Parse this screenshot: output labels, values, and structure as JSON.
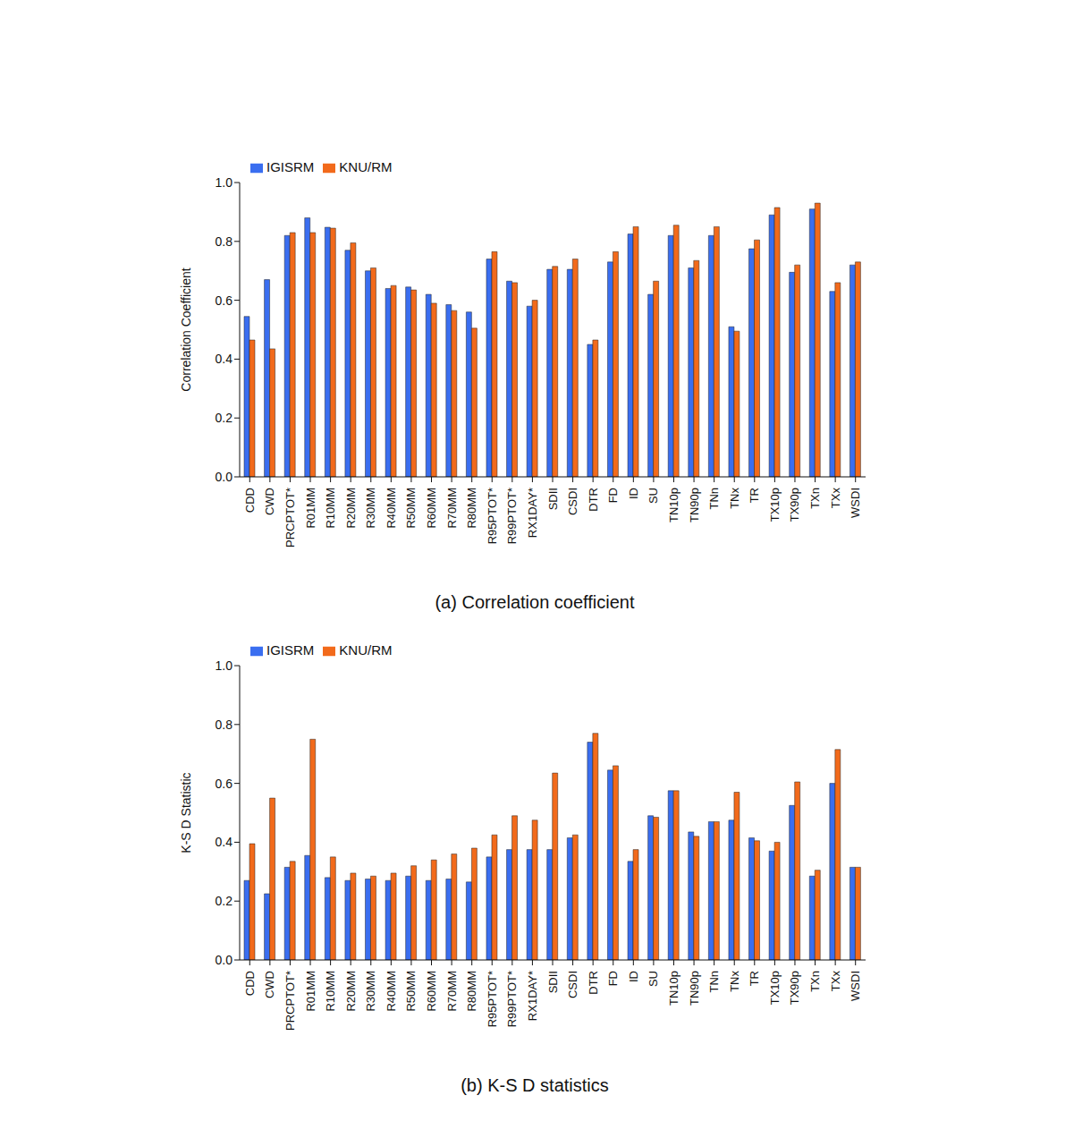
{
  "chart_data": [
    {
      "type": "bar",
      "title": "(a) Correlation coefficient",
      "y_label": "Correlation Coefficient",
      "categories": [
        "CDD",
        "CWD",
        "PRCPTOT*",
        "R01MM",
        "R10MM",
        "R20MM",
        "R30MM",
        "R40MM",
        "R50MM",
        "R60MM",
        "R70MM",
        "R80MM",
        "R95PTOT*",
        "R99PTOT*",
        "RX1DAY*",
        "SDII",
        "CSDI",
        "DTR",
        "FD",
        "ID",
        "SU",
        "TN10p",
        "TN90p",
        "TNn",
        "TNx",
        "TR",
        "TX10p",
        "TX90p",
        "TXn",
        "TXx",
        "WSDI"
      ],
      "series": [
        {
          "name": "IGISRM",
          "color": "#3a6ef0",
          "values": [
            0.545,
            0.67,
            0.82,
            0.88,
            0.848,
            0.77,
            0.7,
            0.64,
            0.645,
            0.62,
            0.585,
            0.56,
            0.74,
            0.665,
            0.58,
            0.705,
            0.705,
            0.45,
            0.73,
            0.825,
            0.62,
            0.82,
            0.71,
            0.82,
            0.51,
            0.775,
            0.89,
            0.695,
            0.91,
            0.63,
            0.72
          ]
        },
        {
          "name": "KNU/RM",
          "color": "#f26a1b",
          "values": [
            0.465,
            0.435,
            0.83,
            0.83,
            0.845,
            0.795,
            0.71,
            0.65,
            0.635,
            0.59,
            0.565,
            0.505,
            0.765,
            0.66,
            0.6,
            0.715,
            0.74,
            0.465,
            0.765,
            0.85,
            0.665,
            0.855,
            0.735,
            0.85,
            0.495,
            0.805,
            0.915,
            0.72,
            0.93,
            0.66,
            0.73
          ]
        }
      ],
      "ylim": [
        0,
        1
      ],
      "yticks": [
        {
          "value": 0,
          "label": "0.0"
        },
        0.2,
        0.4,
        0.6,
        0.8,
        {
          "value": 1,
          "label": "1.0"
        }
      ],
      "grid": false,
      "legend": "upper left"
    },
    {
      "type": "bar",
      "title": "(b) K-S D statistics",
      "y_label": "K-S D Statistic",
      "categories": [
        "CDD",
        "CWD",
        "PRCPTOT*",
        "R01MM",
        "R10MM",
        "R20MM",
        "R30MM",
        "R40MM",
        "R50MM",
        "R60MM",
        "R70MM",
        "R80MM",
        "R95PTOT*",
        "R99PTOT*",
        "RX1DAY*",
        "SDII",
        "CSDI",
        "DTR",
        "FD",
        "ID",
        "SU",
        "TN10p",
        "TN90p",
        "TNn",
        "TNx",
        "TR",
        "TX10p",
        "TX90p",
        "TXn",
        "TXx",
        "WSDI"
      ],
      "series": [
        {
          "name": "IGISRM",
          "color": "#3a6ef0",
          "values": [
            0.27,
            0.225,
            0.315,
            0.355,
            0.28,
            0.27,
            0.275,
            0.27,
            0.285,
            0.27,
            0.275,
            0.265,
            0.35,
            0.375,
            0.375,
            0.375,
            0.415,
            0.74,
            0.645,
            0.335,
            0.49,
            0.575,
            0.435,
            0.47,
            0.475,
            0.415,
            0.37,
            0.525,
            0.285,
            0.6,
            0.315
          ]
        },
        {
          "name": "KNU/RM",
          "color": "#f26a1b",
          "values": [
            0.395,
            0.55,
            0.335,
            0.75,
            0.35,
            0.295,
            0.285,
            0.295,
            0.32,
            0.34,
            0.36,
            0.38,
            0.425,
            0.49,
            0.475,
            0.635,
            0.425,
            0.77,
            0.66,
            0.375,
            0.485,
            0.575,
            0.42,
            0.47,
            0.57,
            0.405,
            0.4,
            0.605,
            0.305,
            0.715,
            0.315
          ]
        }
      ],
      "ylim": [
        0,
        1
      ],
      "yticks": [
        {
          "value": 0,
          "label": "0.0"
        },
        0.2,
        0.4,
        0.6,
        0.8,
        {
          "value": 1,
          "label": "1.0"
        }
      ],
      "grid": false,
      "legend": "upper left"
    }
  ]
}
